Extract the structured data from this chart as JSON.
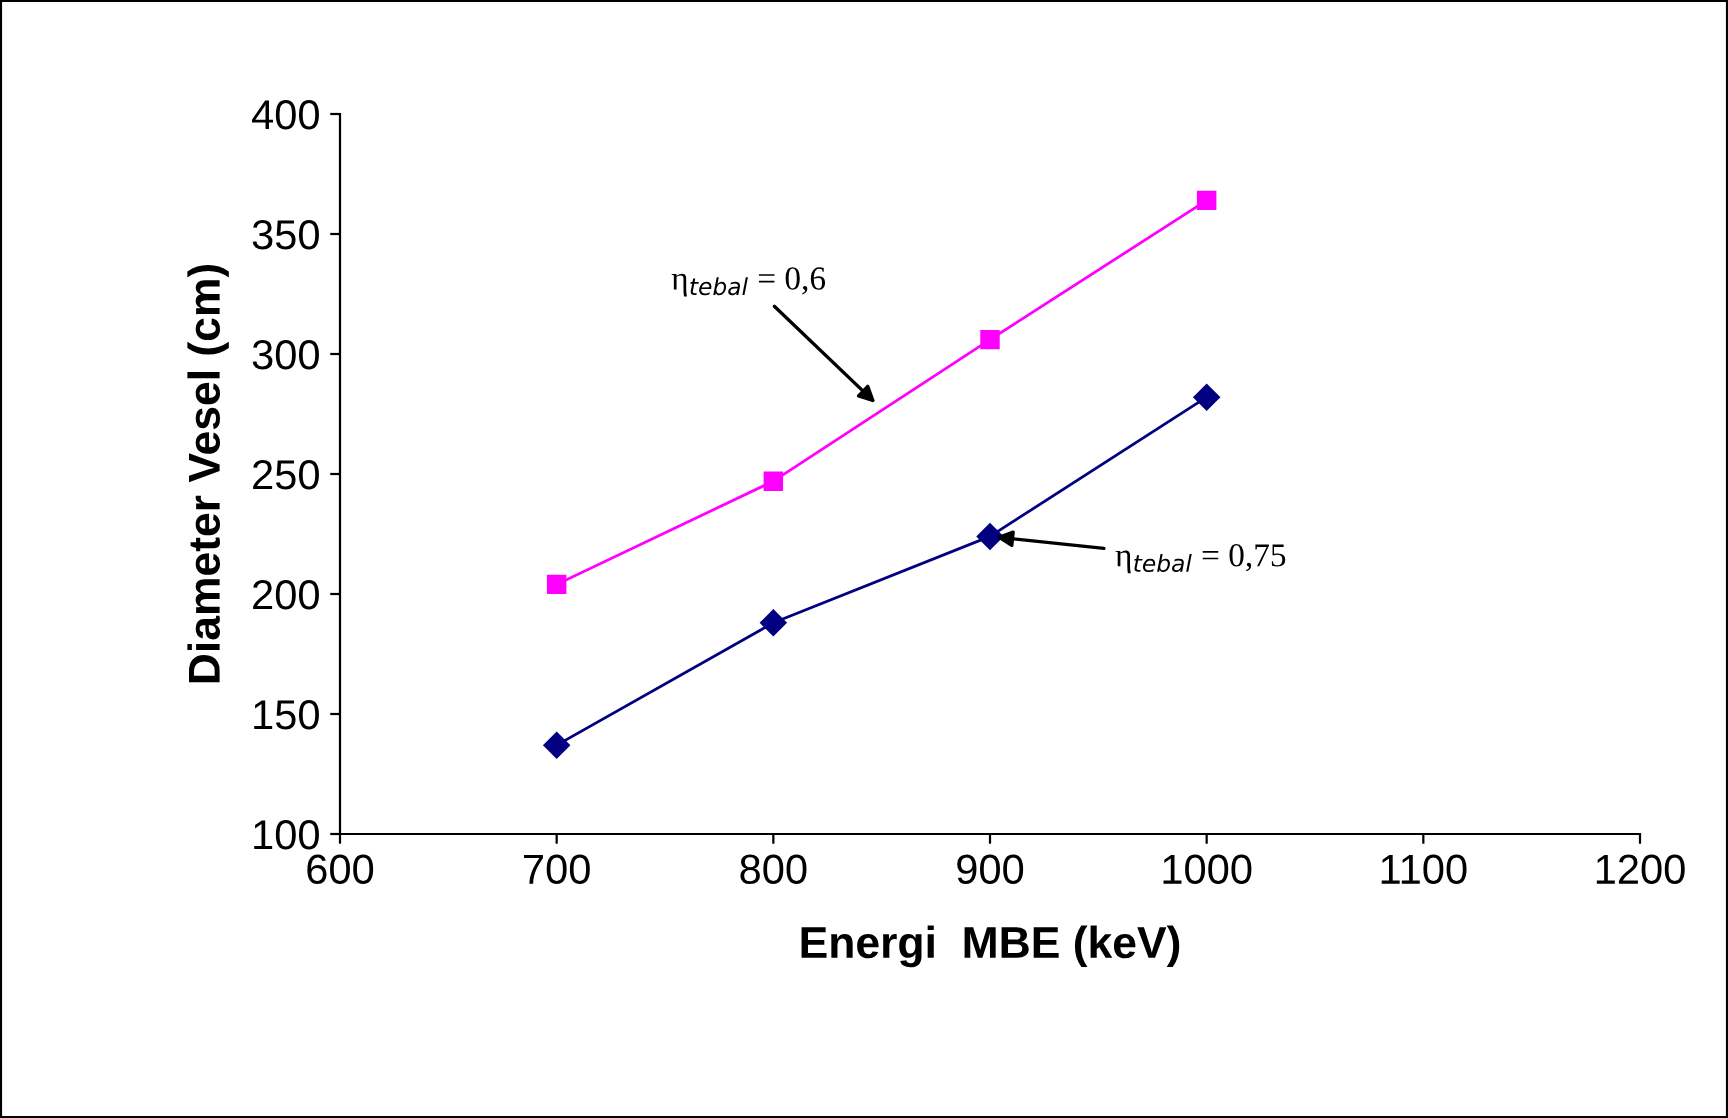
{
  "chart_data": {
    "type": "line",
    "xlabel": "Energi  MBE (keV)",
    "ylabel": "Diameter Vesel (cm)",
    "x": [
      700,
      800,
      900,
      1000
    ],
    "series": [
      {
        "color": "#ff00ff",
        "marker": "square",
        "values": [
          204,
          247,
          306,
          364
        ]
      },
      {
        "color": "#000080",
        "marker": "diamond",
        "values": [
          137,
          188,
          224,
          282
        ]
      }
    ],
    "xlim": [
      600,
      1200
    ],
    "xticks": [
      600,
      700,
      800,
      900,
      1000,
      1100,
      1200
    ],
    "ylim": [
      100,
      400
    ],
    "yticks": [
      100,
      150,
      200,
      250,
      300,
      350,
      400
    ],
    "grid": false,
    "legend": false,
    "annotations": [
      {
        "text": "η$_{tebal}$ = 0,6",
        "x": 849,
        "y": 278
      },
      {
        "text": "η$_{tebal}$ = 0,75",
        "x": 900,
        "y": 224
      }
    ]
  }
}
